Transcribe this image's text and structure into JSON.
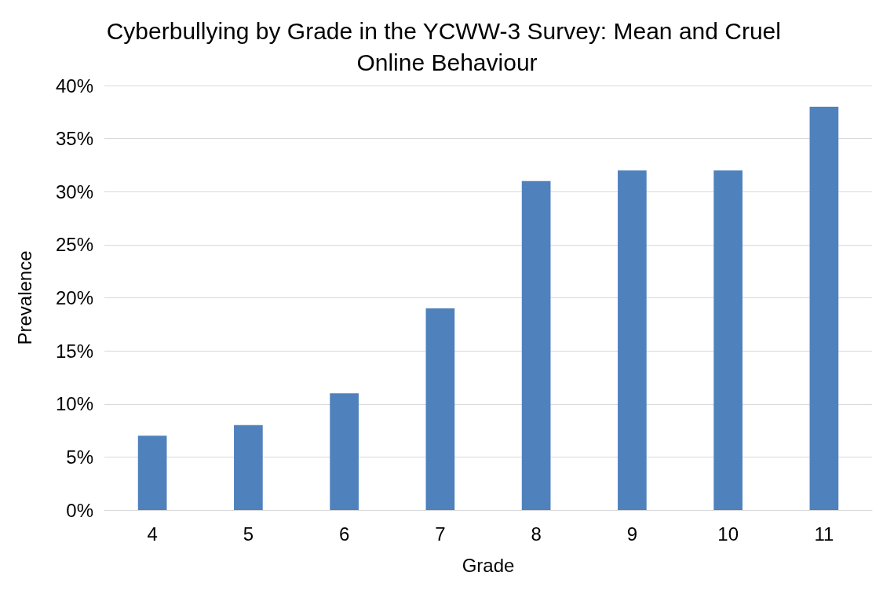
{
  "chart_data": {
    "type": "bar",
    "title": "Cyberbullying by Grade in the YCWW-3 Survey: Mean and Cruel Online Behaviour",
    "xlabel": "Grade",
    "ylabel": "Prevalence",
    "categories": [
      "4",
      "5",
      "6",
      "7",
      "8",
      "9",
      "10",
      "11"
    ],
    "values": [
      7,
      8,
      11,
      19,
      31,
      32,
      32,
      38
    ],
    "color": "#4f81bd",
    "ylim": [
      0,
      40
    ],
    "yticks": [
      {
        "value": 0,
        "label": "0%"
      },
      {
        "value": 5,
        "label": "5%"
      },
      {
        "value": 10,
        "label": "10%"
      },
      {
        "value": 15,
        "label": "15%"
      },
      {
        "value": 20,
        "label": "20%"
      },
      {
        "value": 25,
        "label": "25%"
      },
      {
        "value": 30,
        "label": "30%"
      },
      {
        "value": 35,
        "label": "35%"
      },
      {
        "value": 40,
        "label": "40%"
      }
    ],
    "grid": "y"
  }
}
